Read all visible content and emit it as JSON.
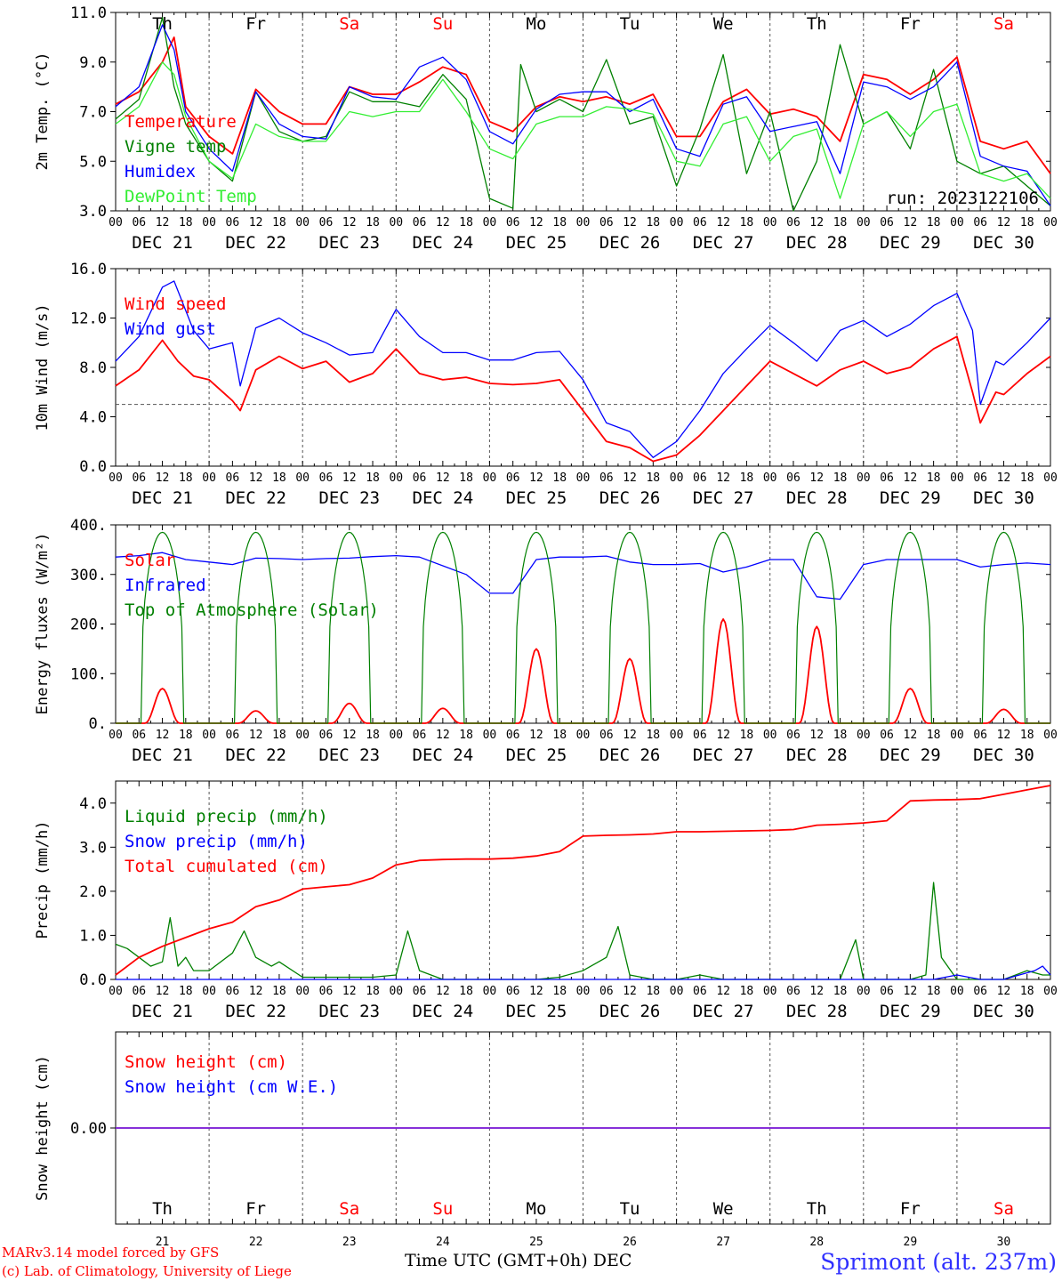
{
  "run_label": "run: 2023122106",
  "days": [
    "DEC 21",
    "DEC 22",
    "DEC 23",
    "DEC 24",
    "DEC 25",
    "DEC 26",
    "DEC 27",
    "DEC 28",
    "DEC 29",
    "DEC 30"
  ],
  "day_numbers": [
    "21",
    "22",
    "23",
    "24",
    "25",
    "26",
    "27",
    "28",
    "29",
    "30"
  ],
  "weekdays": [
    "Th",
    "Fr",
    "Sa",
    "Su",
    "Mo",
    "Tu",
    "We",
    "Th",
    "Fr",
    "Sa"
  ],
  "weekend_color": "#ff0000",
  "hour_ticks": [
    "00",
    "06",
    "12",
    "18"
  ],
  "footer": {
    "credit_line1": "MARv3.14 model forced by GFS",
    "credit_line2": "(c) Lab. of Climatology, University of Liege",
    "x_axis_label": "Time UTC (GMT+0h) DEC",
    "station": "Sprimont (alt. 237m)"
  },
  "chart_data": [
    {
      "type": "line",
      "ylabel": "2m Temp. (°C)",
      "ylim": [
        3.0,
        11.0
      ],
      "yticks": [
        "3.0",
        "5.0",
        "7.0",
        "9.0",
        "11.0"
      ],
      "series": [
        {
          "name": "Temperature",
          "color": "#ff0000",
          "x": [
            0,
            6,
            12,
            15,
            18,
            24,
            30,
            36,
            42,
            48,
            54,
            60,
            66,
            72,
            78,
            84,
            90,
            96,
            102,
            108,
            114,
            120,
            126,
            132,
            138,
            144,
            150,
            156,
            162,
            168,
            174,
            180,
            186,
            192,
            198,
            204,
            210,
            216,
            222,
            228,
            234,
            240
          ],
          "y": [
            7.3,
            7.8,
            9.0,
            10.0,
            7.2,
            6.0,
            5.3,
            7.9,
            7.0,
            6.5,
            6.5,
            8.0,
            7.7,
            7.7,
            8.2,
            8.8,
            8.5,
            6.6,
            6.2,
            7.2,
            7.6,
            7.4,
            7.6,
            7.3,
            7.7,
            6.0,
            6.0,
            7.4,
            7.9,
            6.9,
            7.1,
            6.8,
            5.8,
            8.5,
            8.3,
            7.7,
            8.3,
            9.2,
            5.8,
            5.5,
            5.8,
            4.5
          ]
        },
        {
          "name": "Vigne temp",
          "color": "#008000",
          "x": [
            0,
            6,
            12,
            15,
            18,
            24,
            30,
            36,
            42,
            48,
            54,
            60,
            66,
            72,
            78,
            84,
            90,
            96,
            102,
            104,
            108,
            114,
            120,
            126,
            132,
            138,
            144,
            150,
            156,
            162,
            168,
            174,
            180,
            186,
            192,
            198,
            204,
            210,
            216,
            222,
            228,
            234,
            240
          ],
          "y": [
            6.7,
            7.5,
            10.8,
            8.0,
            6.5,
            5.0,
            4.2,
            7.8,
            6.2,
            5.8,
            6.0,
            7.8,
            7.4,
            7.4,
            7.2,
            8.5,
            7.5,
            3.5,
            3.1,
            8.9,
            7.0,
            7.5,
            7.0,
            9.1,
            6.5,
            6.8,
            4.0,
            6.3,
            9.3,
            4.5,
            7.0,
            3.0,
            5.0,
            9.7,
            6.5,
            7.0,
            5.5,
            8.7,
            5.0,
            4.5,
            4.8,
            4.0,
            3.2
          ]
        },
        {
          "name": "Humidex",
          "color": "#0000ff",
          "x": [
            0,
            6,
            12,
            15,
            18,
            24,
            30,
            36,
            42,
            48,
            54,
            60,
            66,
            72,
            78,
            84,
            90,
            96,
            102,
            108,
            114,
            120,
            126,
            132,
            138,
            144,
            150,
            156,
            162,
            168,
            174,
            180,
            186,
            192,
            198,
            204,
            210,
            216,
            222,
            228,
            234,
            240
          ],
          "y": [
            7.2,
            8.0,
            10.5,
            9.5,
            7.0,
            5.5,
            4.6,
            7.8,
            6.5,
            6.0,
            5.9,
            8.0,
            7.6,
            7.5,
            8.8,
            9.2,
            8.3,
            6.2,
            5.7,
            7.1,
            7.7,
            7.8,
            7.8,
            7.0,
            7.5,
            5.5,
            5.2,
            7.3,
            7.6,
            6.2,
            6.4,
            6.6,
            4.5,
            8.2,
            8.0,
            7.5,
            8.0,
            9.0,
            5.2,
            4.8,
            4.6,
            3.2
          ]
        },
        {
          "name": "DewPoint Temp",
          "color": "#33ee33",
          "x": [
            0,
            6,
            12,
            15,
            18,
            24,
            30,
            36,
            42,
            48,
            54,
            60,
            66,
            72,
            78,
            84,
            90,
            96,
            102,
            108,
            114,
            120,
            126,
            132,
            138,
            144,
            150,
            156,
            162,
            168,
            174,
            180,
            186,
            192,
            198,
            204,
            210,
            216,
            222,
            228,
            234,
            240
          ],
          "y": [
            6.5,
            7.2,
            9.0,
            8.5,
            6.8,
            5.0,
            4.3,
            6.5,
            6.0,
            5.8,
            5.8,
            7.0,
            6.8,
            7.0,
            7.0,
            8.3,
            7.0,
            5.5,
            5.1,
            6.5,
            6.8,
            6.8,
            7.2,
            7.1,
            6.9,
            5.0,
            4.8,
            6.5,
            6.8,
            5.0,
            6.0,
            6.3,
            3.5,
            6.5,
            7.0,
            6.0,
            7.0,
            7.3,
            4.5,
            4.2,
            4.5,
            3.5
          ]
        }
      ]
    },
    {
      "type": "line",
      "ylabel": "10m Wind (m/s)",
      "ylim": [
        0.0,
        16.0
      ],
      "yticks": [
        "0.0",
        "4.0",
        "8.0",
        "12.0",
        "16.0"
      ],
      "reference_line": 5.0,
      "series": [
        {
          "name": "Wind speed",
          "color": "#ff0000",
          "x": [
            0,
            6,
            12,
            16,
            20,
            24,
            30,
            32,
            36,
            42,
            48,
            54,
            60,
            66,
            72,
            78,
            84,
            90,
            96,
            102,
            108,
            114,
            120,
            126,
            132,
            138,
            144,
            150,
            156,
            162,
            168,
            174,
            180,
            186,
            192,
            198,
            204,
            210,
            216,
            220,
            222,
            226,
            228,
            234,
            240
          ],
          "y": [
            6.5,
            7.8,
            10.2,
            8.5,
            7.3,
            7.0,
            5.3,
            4.5,
            7.8,
            8.9,
            7.9,
            8.5,
            6.8,
            7.5,
            9.5,
            7.5,
            7.0,
            7.2,
            6.7,
            6.6,
            6.7,
            7.0,
            4.5,
            2.0,
            1.5,
            0.4,
            0.9,
            2.5,
            4.5,
            6.5,
            8.5,
            7.5,
            6.5,
            7.8,
            8.5,
            7.5,
            8.0,
            9.5,
            10.5,
            6.0,
            3.5,
            6.0,
            5.8,
            7.5,
            8.9
          ]
        },
        {
          "name": "Wind gust",
          "color": "#0000ff",
          "x": [
            0,
            6,
            12,
            15,
            20,
            24,
            30,
            32,
            36,
            42,
            48,
            54,
            60,
            66,
            72,
            78,
            84,
            90,
            96,
            102,
            108,
            114,
            120,
            126,
            132,
            138,
            144,
            150,
            156,
            162,
            168,
            174,
            180,
            186,
            192,
            198,
            204,
            210,
            216,
            220,
            222,
            226,
            228,
            234,
            240
          ],
          "y": [
            8.5,
            10.5,
            14.5,
            15.0,
            11.0,
            9.5,
            10.0,
            6.5,
            11.2,
            12.0,
            10.8,
            10.0,
            9.0,
            9.2,
            12.7,
            10.5,
            9.2,
            9.2,
            8.6,
            8.6,
            9.2,
            9.3,
            7.0,
            3.5,
            2.8,
            0.7,
            2.0,
            4.5,
            7.5,
            9.5,
            11.4,
            10.0,
            8.5,
            11.0,
            11.8,
            10.5,
            11.5,
            13.0,
            14.0,
            11.0,
            5.0,
            8.5,
            8.2,
            10.0,
            12.0
          ]
        }
      ]
    },
    {
      "type": "line",
      "ylabel": "Energy fluxes (W/m²)",
      "ylim": [
        0,
        400
      ],
      "yticks": [
        "0.",
        "100.",
        "200.",
        "300.",
        "400."
      ],
      "series": [
        {
          "name": "Solar",
          "color": "#ff0000",
          "daily_peaks": [
            70,
            25,
            40,
            30,
            150,
            130,
            210,
            195,
            70,
            28
          ]
        },
        {
          "name": "Infrared",
          "color": "#0000ff",
          "x": [
            0,
            6,
            12,
            18,
            24,
            30,
            36,
            42,
            48,
            54,
            60,
            66,
            72,
            78,
            90,
            96,
            102,
            108,
            114,
            120,
            126,
            132,
            138,
            144,
            150,
            156,
            162,
            168,
            174,
            180,
            186,
            192,
            198,
            204,
            210,
            216,
            222,
            228,
            234,
            240
          ],
          "y": [
            335,
            338,
            344,
            330,
            325,
            320,
            333,
            332,
            330,
            332,
            333,
            336,
            338,
            335,
            300,
            262,
            262,
            330,
            335,
            335,
            337,
            325,
            320,
            320,
            322,
            305,
            315,
            330,
            330,
            255,
            250,
            320,
            330,
            330,
            330,
            330,
            315,
            320,
            323,
            320
          ]
        },
        {
          "name": "Top of Atmosphere (Solar)",
          "color": "#008000",
          "daily_peaks": [
            385,
            385,
            385,
            385,
            385,
            385,
            385,
            385,
            385,
            385
          ]
        }
      ]
    },
    {
      "type": "line",
      "ylabel": "Precip (mm/h)",
      "ylim": [
        0.0,
        4.5
      ],
      "yticks": [
        "0.0",
        "1.0",
        "2.0",
        "3.0",
        "4.0"
      ],
      "series": [
        {
          "name": "Liquid precip (mm/h)",
          "color": "#008000",
          "x": [
            0,
            3,
            6,
            9,
            12,
            14,
            16,
            18,
            20,
            24,
            30,
            33,
            36,
            40,
            42,
            48,
            54,
            60,
            66,
            72,
            75,
            78,
            84,
            90,
            96,
            108,
            114,
            120,
            126,
            129,
            132,
            138,
            144,
            150,
            156,
            162,
            168,
            174,
            180,
            186,
            190,
            192,
            198,
            204,
            208,
            210,
            212,
            216,
            222,
            228,
            234,
            238,
            240
          ],
          "y": [
            0.8,
            0.7,
            0.5,
            0.3,
            0.4,
            1.4,
            0.3,
            0.5,
            0.2,
            0.2,
            0.6,
            1.1,
            0.5,
            0.3,
            0.4,
            0.05,
            0.05,
            0.05,
            0.05,
            0.1,
            1.1,
            0.2,
            0.0,
            0.0,
            0.0,
            0.0,
            0.05,
            0.2,
            0.5,
            1.2,
            0.1,
            0.0,
            0.0,
            0.1,
            0.0,
            0.0,
            0.0,
            0.0,
            0.0,
            0.0,
            0.9,
            0.0,
            0.0,
            0.0,
            0.1,
            2.2,
            0.5,
            0.0,
            0.0,
            0.0,
            0.2,
            0.1,
            0.1
          ]
        },
        {
          "name": "Snow precip (mm/h)",
          "color": "#0000ff",
          "x": [
            0,
            120,
            200,
            210,
            216,
            222,
            228,
            232,
            236,
            238,
            240
          ],
          "y": [
            0.0,
            0.0,
            0.0,
            0.0,
            0.1,
            0.0,
            0.0,
            0.1,
            0.2,
            0.3,
            0.1
          ]
        },
        {
          "name": "Total cumulated (cm)",
          "color": "#ff0000",
          "x": [
            0,
            6,
            12,
            18,
            24,
            30,
            36,
            42,
            48,
            54,
            60,
            66,
            72,
            78,
            84,
            90,
            96,
            102,
            108,
            114,
            120,
            126,
            132,
            138,
            144,
            150,
            156,
            162,
            168,
            174,
            180,
            186,
            192,
            198,
            204,
            210,
            216,
            222,
            228,
            234,
            240
          ],
          "y": [
            0.1,
            0.5,
            0.75,
            0.95,
            1.15,
            1.3,
            1.65,
            1.8,
            2.05,
            2.1,
            2.15,
            2.3,
            2.6,
            2.7,
            2.72,
            2.73,
            2.73,
            2.75,
            2.8,
            2.9,
            3.25,
            3.27,
            3.28,
            3.3,
            3.35,
            3.35,
            3.36,
            3.37,
            3.38,
            3.4,
            3.5,
            3.52,
            3.55,
            3.6,
            4.05,
            4.07,
            4.08,
            4.1,
            4.2,
            4.3,
            4.4
          ]
        }
      ]
    },
    {
      "type": "line",
      "ylabel": "Snow height (cm)",
      "yticks": [
        "0.00"
      ],
      "series": [
        {
          "name": "Snow height (cm)",
          "color": "#ff0000",
          "x": [
            0,
            240
          ],
          "y": [
            0,
            0
          ]
        },
        {
          "name": "Snow height (cm W.E.)",
          "color": "#0000ff",
          "x": [
            0,
            240
          ],
          "y": [
            0,
            0
          ]
        }
      ]
    }
  ]
}
